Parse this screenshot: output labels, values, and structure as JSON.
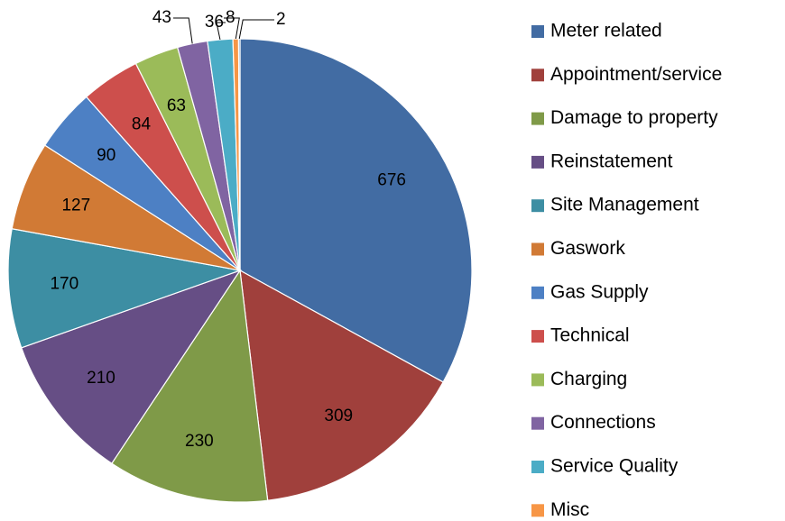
{
  "chart_data": {
    "type": "pie",
    "categories": [
      "Meter related",
      "Appointment/service",
      "Damage to property",
      "Reinstatement",
      "Site Management",
      "Gaswork",
      "Gas Supply",
      "Technical",
      "Charging",
      "Connections",
      "Service Quality",
      "Misc",
      null
    ],
    "values": [
      676,
      309,
      230,
      210,
      170,
      127,
      90,
      84,
      63,
      43,
      36,
      8,
      2
    ],
    "colors": [
      "#426ca3",
      "#a0403c",
      "#7f9a48",
      "#664e85",
      "#3d8ea3",
      "#d17a35",
      "#4d80c4",
      "#cd4f4c",
      "#9bbb59",
      "#8064a2",
      "#4bacc6",
      "#f79646",
      "#3f6aa0"
    ],
    "legend": "right"
  }
}
